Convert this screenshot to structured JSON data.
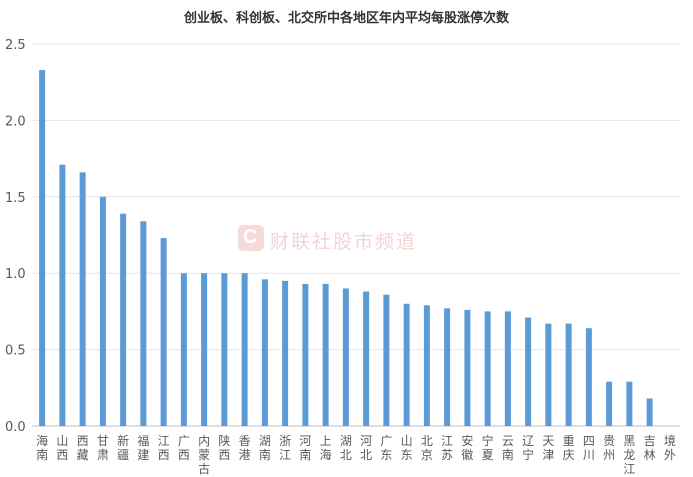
{
  "chart_data": {
    "type": "bar",
    "title": "创业板、科创板、北交所中各地区年内平均每股涨停次数",
    "watermark": "财联社股市频道",
    "categories": [
      "海南",
      "山西",
      "西藏",
      "甘肃",
      "新疆",
      "福建",
      "江西",
      "广西",
      "内蒙古",
      "陕西",
      "香港",
      "湖南",
      "浙江",
      "河南",
      "上海",
      "湖北",
      "河北",
      "广东",
      "山东",
      "北京",
      "江苏",
      "安徽",
      "宁夏",
      "云南",
      "辽宁",
      "天津",
      "重庆",
      "四川",
      "贵州",
      "黑龙江",
      "吉林",
      "境外"
    ],
    "values": [
      2.33,
      1.71,
      1.66,
      1.5,
      1.39,
      1.34,
      1.23,
      1.0,
      1.0,
      1.0,
      1.0,
      0.96,
      0.95,
      0.93,
      0.93,
      0.9,
      0.88,
      0.86,
      0.8,
      0.79,
      0.77,
      0.76,
      0.75,
      0.75,
      0.71,
      0.67,
      0.67,
      0.64,
      0.29,
      0.29,
      0.18,
      0.0
    ],
    "yticks": [
      "0.0",
      "0.5",
      "1.0",
      "1.5",
      "2.0",
      "2.5"
    ],
    "ylim": [
      0,
      2.5
    ],
    "grid": true,
    "legend": "none",
    "bar_color": "#5b9bd5",
    "grid_color": "#e6e6e6",
    "axis_color": "#bfbfbf",
    "tick_color": "#595959"
  }
}
